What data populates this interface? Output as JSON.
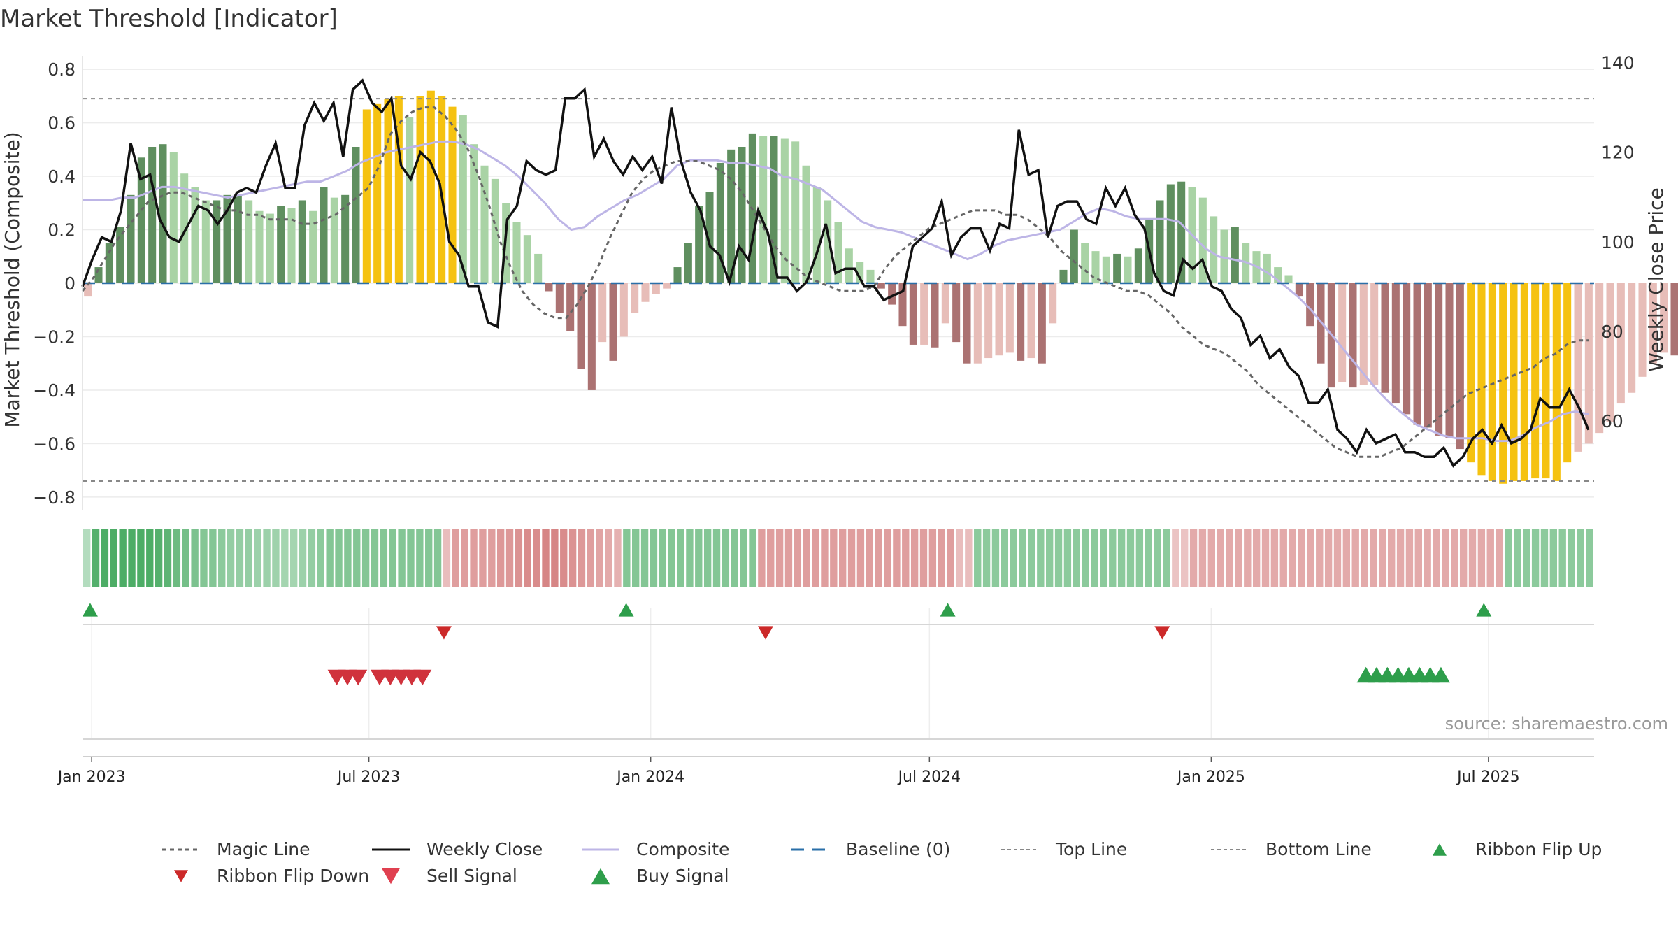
{
  "chart_data": {
    "type": "bar",
    "title": "Market Threshold [Indicator]",
    "ylabel_left": "Market Threshold (Composite)",
    "ylabel_right": "Weekly Close Price",
    "source": "source: sharemaestro.com",
    "left_axis": {
      "min": -0.85,
      "max": 0.85,
      "ticks": [
        0.8,
        0.6,
        0.4,
        0.2,
        0,
        -0.2,
        -0.4,
        -0.6,
        -0.8
      ],
      "tick_labels": [
        "0.8",
        "0.6",
        "0.4",
        "0.2",
        "0",
        "−0.2",
        "−0.4",
        "−0.6",
        "−0.8"
      ]
    },
    "right_axis": {
      "min": 40,
      "max": 141.5,
      "ticks": [
        140,
        120,
        100,
        80,
        60
      ],
      "tick_labels": [
        "140",
        "120",
        "100",
        "80",
        "60"
      ]
    },
    "x_axis": {
      "start": "2022-12-26",
      "end": "2025-09-08",
      "tick_dates": [
        "2023-01-01",
        "2023-07-01",
        "2024-01-01",
        "2024-07-01",
        "2025-01-01",
        "2025-07-01"
      ],
      "tick_labels": [
        "Jan 2023",
        "Jul 2023",
        "Jan 2024",
        "Jul 2024",
        "Jan 2025",
        "Jul 2025"
      ]
    },
    "top_line": 0.69,
    "bottom_line": -0.74,
    "composite_values": [
      -0.05,
      0.06,
      0.15,
      0.21,
      0.33,
      0.47,
      0.51,
      0.52,
      0.49,
      0.41,
      0.36,
      0.31,
      0.31,
      0.33,
      0.33,
      0.31,
      0.27,
      0.26,
      0.29,
      0.28,
      0.31,
      0.27,
      0.36,
      0.32,
      0.33,
      0.51,
      0.65,
      0.67,
      0.69,
      0.7,
      0.62,
      0.7,
      0.72,
      0.7,
      0.66,
      0.63,
      0.52,
      0.44,
      0.39,
      0.3,
      0.23,
      0.18,
      0.11,
      -0.03,
      -0.11,
      -0.18,
      -0.32,
      -0.4,
      -0.22,
      -0.29,
      -0.2,
      -0.11,
      -0.07,
      -0.04,
      -0.02,
      0.06,
      0.15,
      0.29,
      0.34,
      0.45,
      0.5,
      0.51,
      0.56,
      0.55,
      0.55,
      0.54,
      0.53,
      0.44,
      0.36,
      0.31,
      0.23,
      0.13,
      0.08,
      0.05,
      -0.02,
      -0.08,
      -0.16,
      -0.23,
      -0.23,
      -0.24,
      -0.15,
      -0.22,
      -0.3,
      -0.3,
      -0.28,
      -0.27,
      -0.26,
      -0.29,
      -0.28,
      -0.3,
      -0.15,
      0.05,
      0.2,
      0.15,
      0.12,
      0.1,
      0.11,
      0.1,
      0.13,
      0.24,
      0.31,
      0.37,
      0.38,
      0.36,
      0.32,
      0.25,
      0.2,
      0.21,
      0.15,
      0.12,
      0.11,
      0.06,
      0.03,
      -0.05,
      -0.16,
      -0.3,
      -0.39,
      -0.37,
      -0.39,
      -0.38,
      -0.38,
      -0.41,
      -0.45,
      -0.49,
      -0.53,
      -0.54,
      -0.57,
      -0.58,
      -0.62,
      -0.67,
      -0.72,
      -0.74,
      -0.75,
      -0.74,
      -0.74,
      -0.73,
      -0.73,
      -0.74,
      -0.67,
      -0.63,
      -0.6,
      -0.56,
      -0.52,
      -0.45,
      -0.41,
      -0.35,
      -0.3,
      -0.26,
      -0.27,
      -0.32,
      -0.32,
      -0.33,
      -0.2,
      -0.26,
      -0.3,
      -0.25,
      -0.21,
      -0.24
    ],
    "weekly_close": [
      90,
      96,
      101,
      100,
      107,
      122,
      114,
      115,
      105,
      101,
      100,
      104,
      108,
      107,
      104,
      107,
      111,
      112,
      111,
      117,
      122,
      112,
      112,
      126,
      131,
      127,
      131,
      119,
      134,
      136,
      131,
      129,
      132,
      117,
      114,
      120,
      118,
      113,
      100,
      97,
      90,
      90,
      82,
      81,
      105,
      108,
      118,
      116,
      115,
      116,
      132,
      132,
      134,
      119,
      123,
      118,
      115,
      119,
      116,
      119,
      113,
      130,
      118,
      111,
      107,
      99,
      97,
      91,
      99,
      96,
      107,
      102,
      92,
      92,
      89,
      91,
      97,
      104,
      93,
      94,
      94,
      90,
      90,
      87,
      88,
      89,
      99,
      101,
      103,
      109,
      97,
      101,
      103,
      103,
      98,
      104,
      103,
      125,
      115,
      116,
      101,
      108,
      109,
      109,
      105,
      104,
      112,
      108,
      112,
      106,
      103,
      93,
      89,
      88,
      96,
      94,
      96,
      90,
      89,
      85,
      83,
      77,
      79,
      74,
      76,
      72,
      70,
      64,
      64,
      67,
      58,
      56,
      53,
      58,
      55,
      56,
      57,
      53,
      53,
      52,
      52,
      54,
      50,
      52,
      56,
      58,
      55,
      59,
      55,
      56,
      58,
      65,
      63,
      63,
      67,
      63,
      58
    ],
    "magic_line": [
      89,
      92,
      96,
      100,
      103,
      106,
      109,
      110,
      111,
      111,
      110,
      109,
      108,
      107,
      107,
      106,
      106,
      105,
      105,
      105,
      104,
      104,
      105,
      106,
      108,
      110,
      112,
      117,
      124,
      127,
      129,
      130,
      130,
      128,
      125,
      121,
      115,
      108,
      100,
      94,
      89,
      86,
      84,
      83,
      83,
      86,
      90,
      95,
      101,
      106,
      111,
      114,
      116,
      117,
      118,
      118,
      118,
      117,
      116,
      114,
      111,
      107,
      103,
      99,
      96,
      94,
      92,
      91,
      90,
      89,
      89,
      89,
      90,
      94,
      97,
      99,
      101,
      103,
      104,
      105,
      106,
      107,
      107,
      107,
      106,
      106,
      105,
      103,
      101,
      98,
      96,
      94,
      92,
      91,
      90,
      89,
      89,
      88,
      86,
      84,
      81,
      79,
      77,
      76,
      75,
      73,
      71,
      68,
      66,
      64,
      62,
      60,
      58,
      56,
      54,
      53,
      52,
      52,
      52,
      53,
      54,
      56,
      58,
      60,
      62,
      64,
      66,
      67,
      68,
      69,
      70,
      71,
      72,
      74,
      75,
      77,
      78,
      78
    ],
    "composite_line": [
      0.31,
      0.31,
      0.31,
      0.32,
      0.32,
      0.34,
      0.36,
      0.36,
      0.35,
      0.34,
      0.33,
      0.32,
      0.33,
      0.34,
      0.35,
      0.36,
      0.37,
      0.38,
      0.38,
      0.4,
      0.42,
      0.45,
      0.47,
      0.49,
      0.5,
      0.51,
      0.52,
      0.53,
      0.53,
      0.52,
      0.5,
      0.47,
      0.44,
      0.4,
      0.35,
      0.3,
      0.24,
      0.2,
      0.21,
      0.25,
      0.28,
      0.31,
      0.33,
      0.36,
      0.39,
      0.44,
      0.46,
      0.46,
      0.46,
      0.45,
      0.45,
      0.44,
      0.43,
      0.4,
      0.39,
      0.37,
      0.35,
      0.31,
      0.27,
      0.23,
      0.21,
      0.2,
      0.19,
      0.17,
      0.15,
      0.13,
      0.11,
      0.09,
      0.11,
      0.14,
      0.16,
      0.17,
      0.18,
      0.19,
      0.2,
      0.23,
      0.26,
      0.28,
      0.27,
      0.25,
      0.24,
      0.24,
      0.24,
      0.23,
      0.18,
      0.13,
      0.1,
      0.09,
      0.08,
      0.06,
      0.03,
      -0.01,
      -0.05,
      -0.1,
      -0.16,
      -0.22,
      -0.28,
      -0.34,
      -0.4,
      -0.45,
      -0.49,
      -0.53,
      -0.55,
      -0.57,
      -0.58,
      -0.58,
      -0.58,
      -0.59,
      -0.59,
      -0.57,
      -0.54,
      -0.52,
      -0.49,
      -0.48,
      -0.49
    ],
    "ribbon_strength": [
      0.15,
      0.75,
      0.8,
      0.8,
      0.8,
      0.8,
      0.8,
      0.8,
      0.75,
      0.7,
      0.6,
      0.55,
      0.5,
      0.45,
      0.45,
      0.4,
      0.35,
      0.35,
      0.35,
      0.3,
      0.3,
      0.28,
      0.25,
      0.25,
      0.3,
      0.35,
      0.4,
      0.45,
      0.45,
      0.45,
      0.45,
      0.45,
      0.45,
      0.45,
      0.45,
      0.45,
      0.45,
      0.45,
      0.45,
      0.45,
      -0.2,
      -0.45,
      -0.45,
      -0.45,
      -0.45,
      -0.45,
      -0.5,
      -0.5,
      -0.55,
      -0.6,
      -0.6,
      -0.65,
      -0.65,
      -0.6,
      -0.55,
      -0.5,
      -0.45,
      -0.4,
      -0.35,
      -0.3,
      0.45,
      0.45,
      0.45,
      0.45,
      0.45,
      0.45,
      0.45,
      0.45,
      0.45,
      0.45,
      0.45,
      0.45,
      0.45,
      0.45,
      0.45,
      -0.45,
      -0.45,
      -0.45,
      -0.45,
      -0.45,
      -0.45,
      -0.45,
      -0.45,
      -0.45,
      -0.45,
      -0.45,
      -0.45,
      -0.45,
      -0.45,
      -0.45,
      -0.45,
      -0.45,
      -0.45,
      -0.45,
      -0.45,
      -0.45,
      -0.45,
      -0.2,
      -0.2,
      0.4,
      0.4,
      0.4,
      0.4,
      0.4,
      0.4,
      0.4,
      0.4,
      0.4,
      0.4,
      0.4,
      0.4,
      0.4,
      0.4,
      0.4,
      0.4,
      0.4,
      0.4,
      0.4,
      0.4,
      0.4,
      0.4,
      -0.15,
      -0.15,
      -0.35,
      -0.35,
      -0.35,
      -0.35,
      -0.35,
      -0.35,
      -0.35,
      -0.35,
      -0.35,
      -0.35,
      -0.35,
      -0.35,
      -0.35,
      -0.35,
      -0.35,
      -0.35,
      -0.35,
      -0.35,
      -0.35,
      -0.35,
      -0.35,
      -0.35,
      -0.35,
      -0.35,
      -0.35,
      -0.35,
      -0.35,
      -0.35,
      -0.35,
      -0.35,
      -0.35,
      -0.35,
      -0.35,
      -0.35,
      -0.35,
      0.4,
      0.4,
      0.4,
      0.4,
      0.4,
      0.4,
      0.4,
      0.4,
      0.4,
      0.4
    ],
    "ribbon_flip_up": [
      "2022-12-31",
      "2023-12-16",
      "2024-07-13",
      "2025-06-28"
    ],
    "ribbon_flip_down": [
      "2023-08-19",
      "2024-03-16",
      "2024-11-30"
    ],
    "sell_signals": [
      "2023-06-10",
      "2023-06-17",
      "2023-06-24",
      "2023-07-08",
      "2023-07-15",
      "2023-07-22",
      "2023-07-29",
      "2023-08-05"
    ],
    "buy_signals": [
      "2025-04-12",
      "2025-04-19",
      "2025-04-26",
      "2025-05-03",
      "2025-05-10",
      "2025-05-17",
      "2025-05-24",
      "2025-05-31"
    ],
    "colors": {
      "bull_strong": "#5f8f5f",
      "bull_weak": "#a9d3a5",
      "bear_strong": "#ab7272",
      "bear_weak": "#e7bdb8",
      "extreme": "#f5c211",
      "weekly_close": "#111111",
      "magic_line": "#666666",
      "composite": "#bdb5e6",
      "baseline": "#2a6fa8",
      "buy": "#2e9e4b",
      "sell": "#d0323c",
      "flip_down": "#cc2929"
    },
    "legend": [
      {
        "label": "Magic Line",
        "kind": "dotted",
        "color": "#666666"
      },
      {
        "label": "Weekly Close",
        "kind": "solid",
        "color": "#111111"
      },
      {
        "label": "Composite",
        "kind": "solid-light",
        "color": "#bdb5e6"
      },
      {
        "label": "Baseline (0)",
        "kind": "dashed",
        "color": "#2a6fa8"
      },
      {
        "label": "Top Line",
        "kind": "dotted-thin",
        "color": "#888888"
      },
      {
        "label": "Bottom Line",
        "kind": "dotted-thin",
        "color": "#888888"
      },
      {
        "label": "Ribbon Flip Up",
        "kind": "tri-up",
        "color": "#2e9e4b"
      },
      {
        "label": "Ribbon Flip Down",
        "kind": "tri-down",
        "color": "#cc2929"
      },
      {
        "label": "Sell Signal",
        "kind": "tri-down-big",
        "color": "#e04050"
      },
      {
        "label": "Buy Signal",
        "kind": "tri-up-big",
        "color": "#2e9e4b"
      }
    ]
  }
}
